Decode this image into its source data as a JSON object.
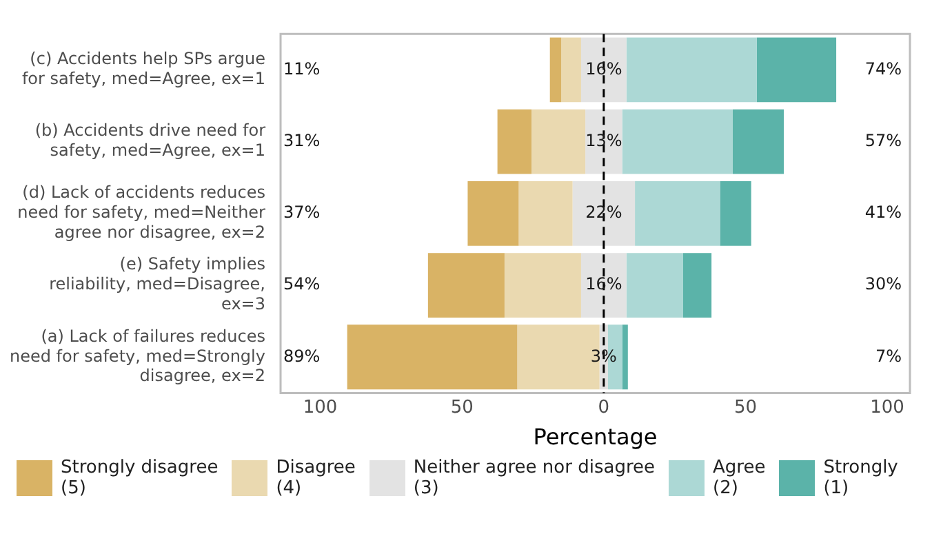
{
  "chart_data": {
    "type": "bar",
    "orientation": "horizontal",
    "categories": [
      "(c) Accidents help SPs argue for safety, med=Agree, ex=1",
      "(b) Accidents drive need for safety, med=Agree, ex=1",
      "(d) Lack of accidents reduces need for safety, med=Neither agree nor disagree, ex=2",
      "(e) Safety implies reliability, med=Disagree, ex=3",
      "(a) Lack of failures reduces need for safety, med=Strongly disagree, ex=2"
    ],
    "series": [
      {
        "name": "Strongly disagree (5)",
        "color": "#d9b365",
        "base": [
          -19,
          -37.5,
          -48,
          -62,
          -90.5
        ],
        "values": [
          4,
          12,
          18,
          27,
          60
        ]
      },
      {
        "name": "Disagree (4)",
        "color": "#ead9b0",
        "base": [
          -15,
          -25.5,
          -30,
          -35,
          -30.5
        ],
        "values": [
          7,
          19,
          19,
          27,
          29
        ]
      },
      {
        "name": "Neither agree nor disagree (3)",
        "color": "#e3e3e3",
        "base": [
          -8,
          -6.5,
          -11,
          -8,
          -1.5
        ],
        "values": [
          16,
          13,
          22,
          16,
          3
        ],
        "value_labels": [
          "16%",
          "13%",
          "22%",
          "16%",
          "3%"
        ]
      },
      {
        "name": "Agree (2)",
        "color": "#acd8d5",
        "base": [
          8,
          6.5,
          11,
          8,
          1.5
        ],
        "values": [
          46,
          39,
          30,
          20,
          5
        ]
      },
      {
        "name": "Strongly (1)",
        "color": "#5bb3a9",
        "base": [
          54,
          45.5,
          41,
          28,
          6.5
        ],
        "values": [
          28,
          18,
          11,
          10,
          2
        ]
      }
    ],
    "xlim": [
      -114,
      108
    ],
    "xticks": [
      {
        "value": -100,
        "label": "100"
      },
      {
        "value": -50,
        "label": "50"
      },
      0,
      50,
      100
    ],
    "xlabel": "Percentage",
    "ref_lines": [
      {
        "axis": "x",
        "value": 0,
        "color": "#000000",
        "line_style": "dashed"
      }
    ],
    "annotations": [
      "11%",
      "74%",
      "31%",
      "57%",
      "37%",
      "41%",
      "54%",
      "30%",
      "89%",
      "7%"
    ],
    "legend": "bottom"
  }
}
